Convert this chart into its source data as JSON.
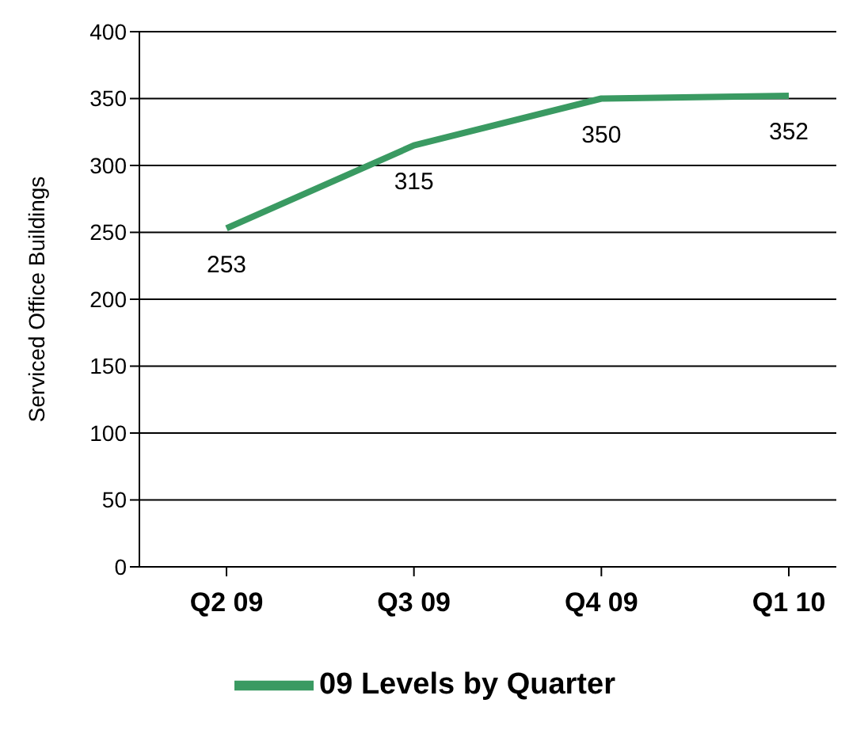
{
  "chart_data": {
    "type": "line",
    "ylabel": "Serviced Office Buildings",
    "categories": [
      "Q2 09",
      "Q3 09",
      "Q4 09",
      "Q1 10"
    ],
    "series": [
      {
        "name": "09 Levels by Quarter",
        "color": "#3a9a62",
        "values": [
          253,
          315,
          350,
          352
        ]
      }
    ],
    "ylim": [
      0,
      400
    ],
    "yticks": [
      0,
      50,
      100,
      150,
      200,
      250,
      300,
      350,
      400
    ],
    "grid": "y",
    "legend": "bottom",
    "data_labels": true,
    "marker": "none"
  }
}
